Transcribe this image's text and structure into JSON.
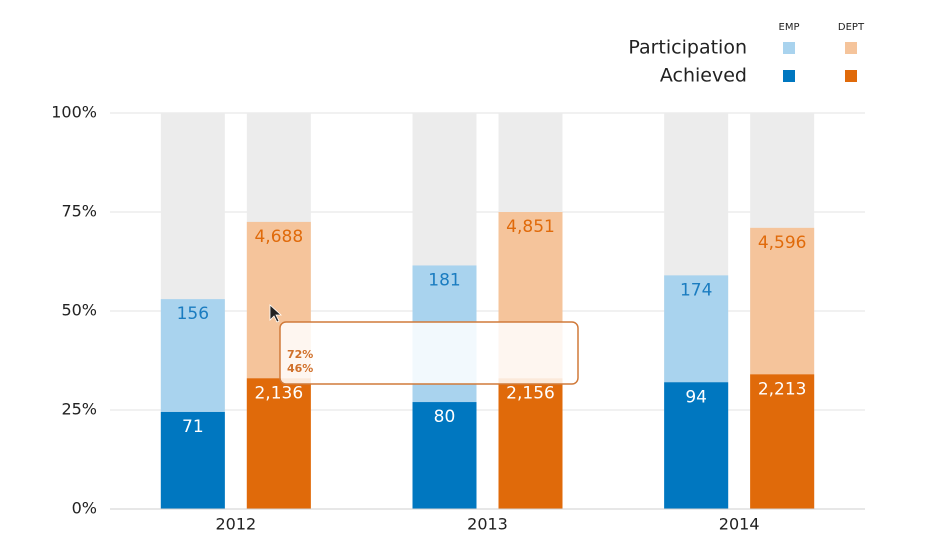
{
  "chart_data": {
    "type": "bar",
    "categories": [
      "2012",
      "2013",
      "2014"
    ],
    "ylim": [
      0,
      100
    ],
    "yticks": [
      {
        "value": 0,
        "label": "0%"
      },
      {
        "value": 25,
        "label": "25%"
      },
      {
        "value": 50,
        "label": "50%"
      },
      {
        "value": 75,
        "label": "75%"
      },
      {
        "value": 100,
        "label": "100%"
      }
    ],
    "grid": true,
    "groups": [
      {
        "name": "EMP",
        "series": [
          {
            "name": "Participation",
            "color": "#a9d3ee",
            "label_color": "#1a7cc0",
            "values": [
              53,
              61.5,
              59
            ],
            "counts": [
              156,
              181,
              174
            ]
          },
          {
            "name": "Achieved",
            "color": "#0077c0",
            "label_color": "#ffffff",
            "values": [
              24.5,
              27,
              32
            ],
            "counts": [
              71,
              80,
              94
            ]
          }
        ]
      },
      {
        "name": "DEPT",
        "series": [
          {
            "name": "Participation",
            "color": "#f5c49b",
            "label_color": "#e06a0a",
            "values": [
              72.5,
              75,
              71
            ],
            "counts": [
              4688,
              4851,
              4596
            ],
            "count_labels": [
              "4,688",
              "4,851",
              "4,596"
            ]
          },
          {
            "name": "Achieved",
            "color": "#e06a0a",
            "label_color": "#ffffff",
            "values": [
              33,
              33,
              34
            ],
            "counts": [
              2136,
              2156,
              2213
            ],
            "count_labels": [
              "2,136",
              "2,156",
              "2,213"
            ]
          }
        ]
      }
    ],
    "tooltip": [
      "72%",
      "46%"
    ]
  }
}
